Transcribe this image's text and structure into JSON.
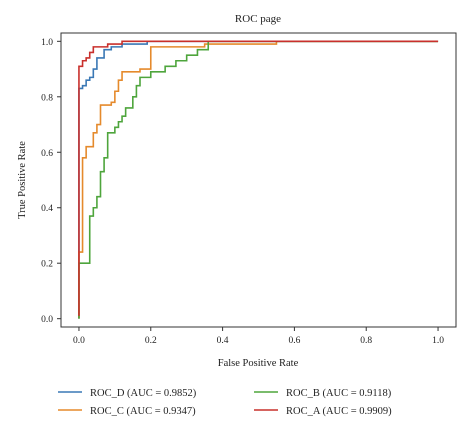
{
  "chart_data": {
    "type": "line",
    "title": "ROC page",
    "xlabel": "False Positive Rate",
    "ylabel": "True Positive Rate",
    "xlim": [
      -0.05,
      1.05
    ],
    "ylim": [
      -0.03,
      1.03
    ],
    "xticks": [
      "0.0",
      "0.2",
      "0.4",
      "0.6",
      "0.8",
      "1.0"
    ],
    "yticks": [
      "0.0",
      "0.2",
      "0.4",
      "0.6",
      "0.8",
      "1.0"
    ],
    "grid": false,
    "legend_position": "below",
    "series": [
      {
        "name": "ROC_D (AUC = 0.9852)",
        "color": "#3a78b5",
        "x": [
          0.0,
          0.0,
          0.01,
          0.01,
          0.02,
          0.02,
          0.03,
          0.03,
          0.04,
          0.04,
          0.05,
          0.05,
          0.07,
          0.07,
          0.09,
          0.09,
          0.12,
          0.12,
          0.15,
          0.15,
          0.19,
          0.19,
          1.0
        ],
        "y": [
          0.0,
          0.83,
          0.83,
          0.84,
          0.84,
          0.86,
          0.86,
          0.87,
          0.87,
          0.9,
          0.9,
          0.94,
          0.94,
          0.97,
          0.97,
          0.98,
          0.98,
          0.99,
          0.99,
          0.99,
          0.99,
          1.0,
          1.0
        ]
      },
      {
        "name": "ROC_C (AUC = 0.9347)",
        "color": "#e58a2c",
        "x": [
          0.0,
          0.0,
          0.01,
          0.01,
          0.02,
          0.02,
          0.04,
          0.04,
          0.05,
          0.05,
          0.06,
          0.06,
          0.07,
          0.07,
          0.09,
          0.09,
          0.1,
          0.1,
          0.11,
          0.11,
          0.12,
          0.12,
          0.14,
          0.14,
          0.17,
          0.17,
          0.2,
          0.2,
          0.35,
          0.35,
          0.55,
          0.55,
          1.0
        ],
        "y": [
          0.0,
          0.24,
          0.24,
          0.58,
          0.58,
          0.62,
          0.62,
          0.67,
          0.67,
          0.7,
          0.7,
          0.77,
          0.77,
          0.77,
          0.77,
          0.78,
          0.78,
          0.82,
          0.82,
          0.86,
          0.86,
          0.89,
          0.89,
          0.89,
          0.89,
          0.9,
          0.9,
          0.98,
          0.98,
          0.99,
          0.99,
          1.0,
          1.0
        ]
      },
      {
        "name": "ROC_B (AUC = 0.9118)",
        "color": "#4ea53c",
        "x": [
          0.0,
          0.0,
          0.03,
          0.03,
          0.04,
          0.04,
          0.05,
          0.05,
          0.06,
          0.06,
          0.07,
          0.07,
          0.08,
          0.08,
          0.1,
          0.1,
          0.11,
          0.11,
          0.12,
          0.12,
          0.13,
          0.13,
          0.15,
          0.15,
          0.16,
          0.16,
          0.17,
          0.17,
          0.2,
          0.2,
          0.24,
          0.24,
          0.27,
          0.27,
          0.3,
          0.3,
          0.33,
          0.33,
          0.36,
          0.36,
          1.0
        ],
        "y": [
          0.0,
          0.2,
          0.2,
          0.37,
          0.37,
          0.4,
          0.4,
          0.44,
          0.44,
          0.53,
          0.53,
          0.58,
          0.58,
          0.67,
          0.67,
          0.69,
          0.69,
          0.71,
          0.71,
          0.73,
          0.73,
          0.76,
          0.76,
          0.8,
          0.8,
          0.84,
          0.84,
          0.87,
          0.87,
          0.89,
          0.89,
          0.91,
          0.91,
          0.93,
          0.93,
          0.95,
          0.95,
          0.97,
          0.97,
          1.0,
          1.0
        ]
      },
      {
        "name": "ROC_A (AUC = 0.9909)",
        "color": "#c9302c",
        "x": [
          0.0,
          0.0,
          0.01,
          0.01,
          0.02,
          0.02,
          0.03,
          0.03,
          0.04,
          0.04,
          0.08,
          0.08,
          0.09,
          0.09,
          0.12,
          0.12,
          1.0
        ],
        "y": [
          0.01,
          0.91,
          0.91,
          0.93,
          0.93,
          0.94,
          0.94,
          0.96,
          0.96,
          0.98,
          0.98,
          0.99,
          0.99,
          0.99,
          0.99,
          1.0,
          1.0
        ]
      }
    ],
    "legend_order": [
      0,
      2,
      1,
      3
    ]
  }
}
